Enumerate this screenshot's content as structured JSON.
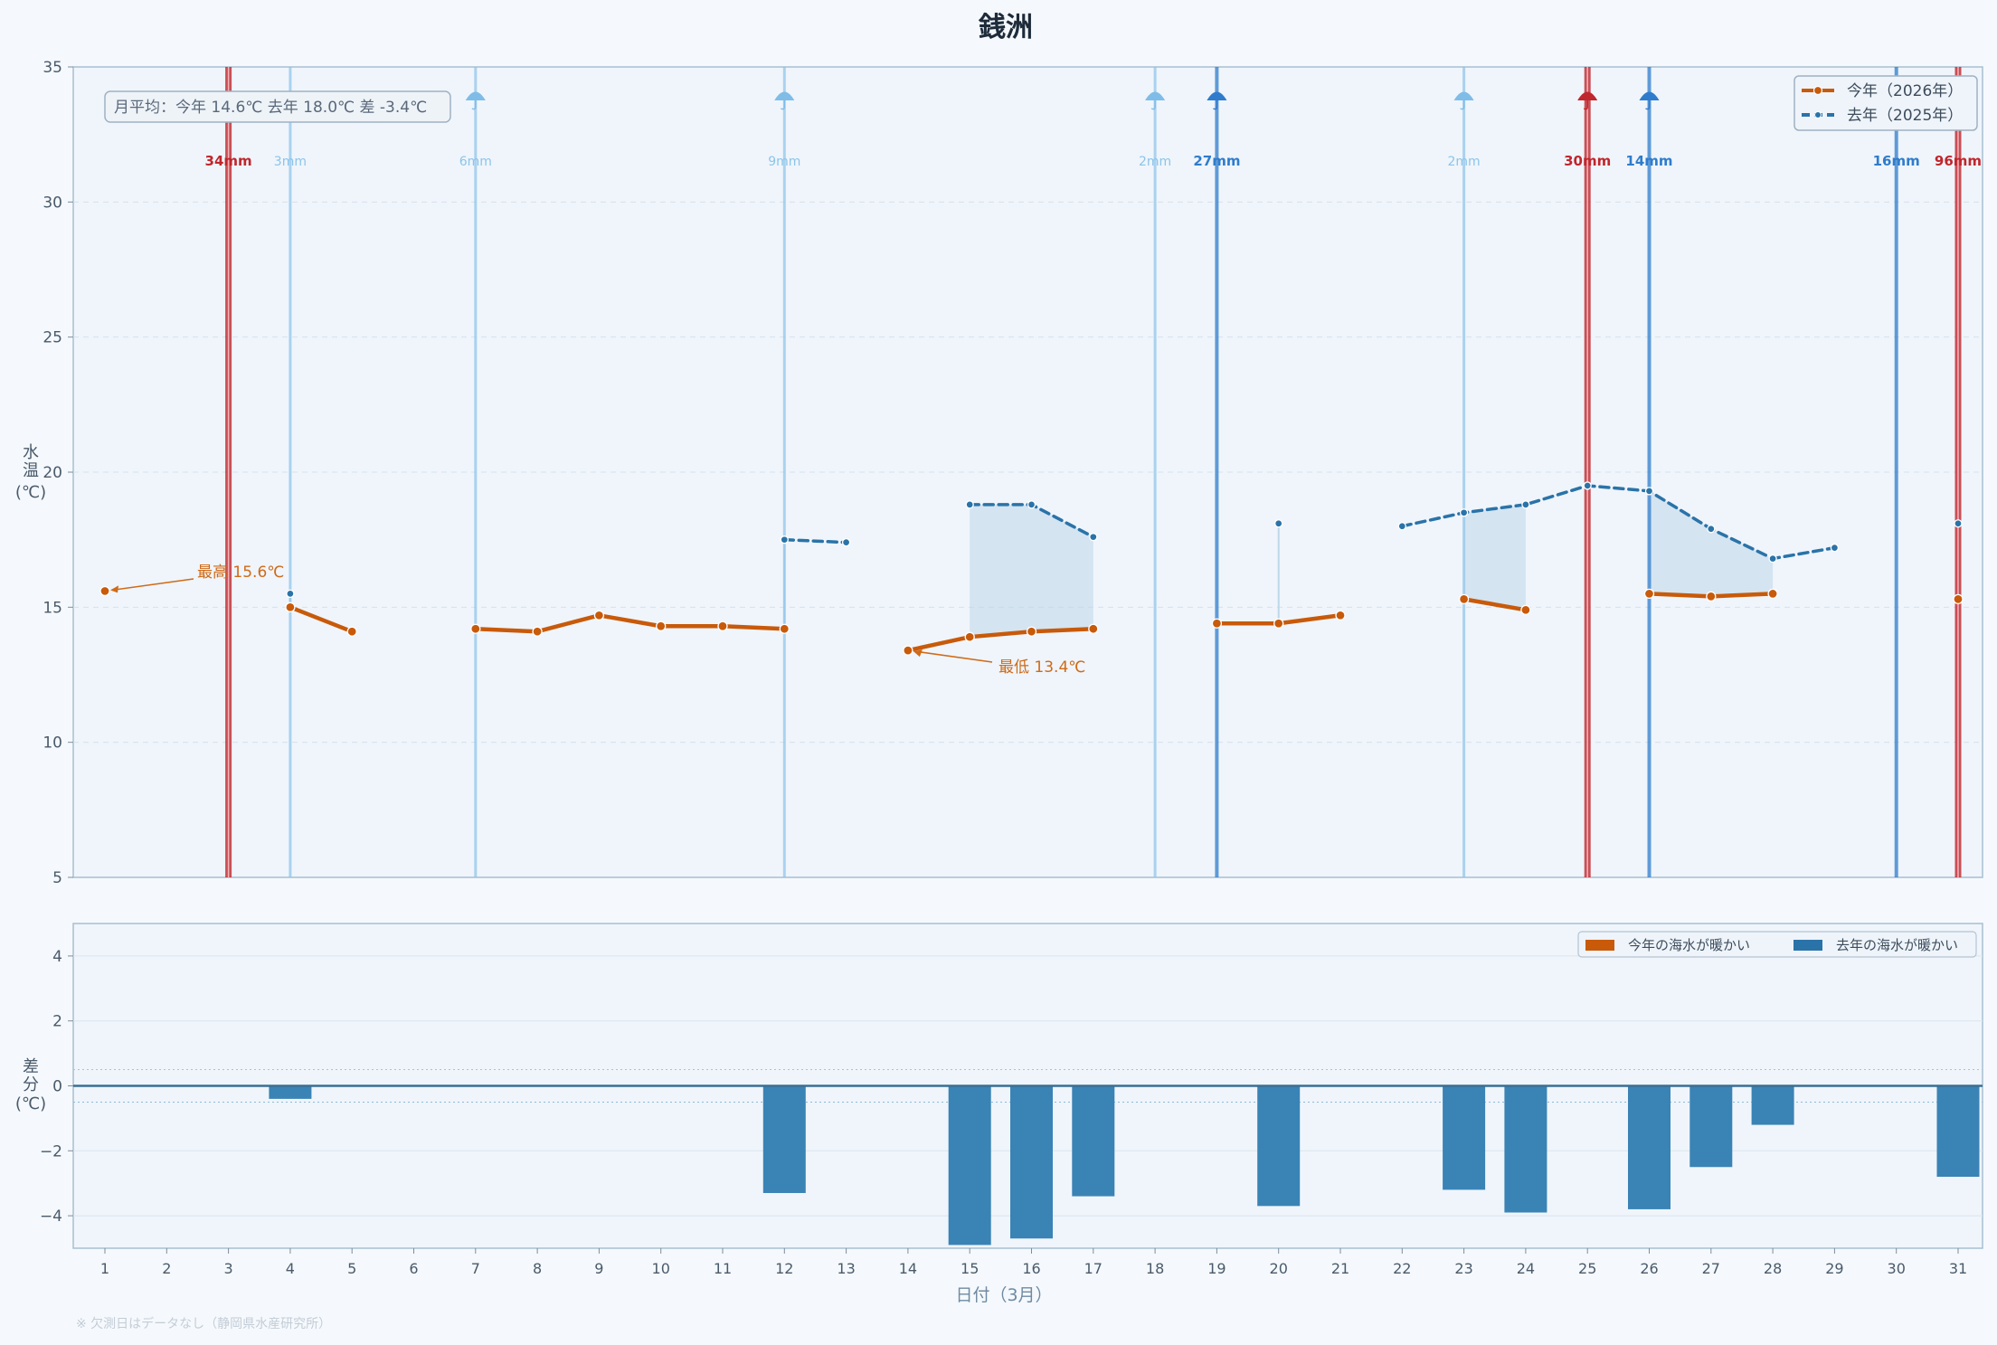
{
  "title": "銭洲",
  "footnote": "※ 欠測日はデータなし（静岡県水産研究所）",
  "colors": {
    "this_year": "#c85a0a",
    "last_year": "#2a73a8",
    "rain_heavy": "#c0262d",
    "rain_mid": "#2f7ccc",
    "rain_light": "#8cc4ea",
    "fill": "#bdd6ea",
    "bar_neg": "#3a83b5",
    "bar_pos": "#c85a0a"
  },
  "chart_data": [
    {
      "type": "line",
      "ylabel": "水温(℃)",
      "ylim": [
        5,
        35
      ],
      "yticks": [
        5,
        10,
        15,
        20,
        25,
        30,
        35
      ],
      "x": [
        1,
        2,
        3,
        4,
        5,
        6,
        7,
        8,
        9,
        10,
        11,
        12,
        13,
        14,
        15,
        16,
        17,
        18,
        19,
        20,
        21,
        22,
        23,
        24,
        25,
        26,
        27,
        28,
        29,
        30,
        31
      ],
      "series": [
        {
          "name": "今年（2026年）",
          "style": "solid",
          "values": [
            15.6,
            null,
            null,
            15.0,
            14.1,
            null,
            14.2,
            14.1,
            14.7,
            14.3,
            14.3,
            14.2,
            null,
            13.4,
            13.9,
            14.1,
            14.2,
            null,
            14.4,
            14.4,
            14.7,
            null,
            15.3,
            14.9,
            null,
            15.5,
            15.4,
            15.5,
            null,
            null,
            15.3
          ]
        },
        {
          "name": "去年（2025年）",
          "style": "dashed",
          "values": [
            null,
            null,
            null,
            15.5,
            null,
            null,
            null,
            null,
            null,
            null,
            null,
            17.5,
            17.4,
            null,
            18.8,
            18.8,
            17.6,
            null,
            null,
            18.1,
            null,
            18.0,
            18.5,
            18.8,
            19.5,
            19.3,
            17.9,
            16.8,
            17.2,
            null,
            18.1
          ]
        }
      ],
      "rain": [
        {
          "day": 3,
          "label": "34mm",
          "level": "heavy"
        },
        {
          "day": 4,
          "label": "3mm",
          "level": "light"
        },
        {
          "day": 7,
          "label": "6mm",
          "level": "light"
        },
        {
          "day": 12,
          "label": "9mm",
          "level": "light"
        },
        {
          "day": 18,
          "label": "2mm",
          "level": "light"
        },
        {
          "day": 19,
          "label": "27mm",
          "level": "mid"
        },
        {
          "day": 23,
          "label": "2mm",
          "level": "light"
        },
        {
          "day": 25,
          "label": "30mm",
          "level": "heavy"
        },
        {
          "day": 26,
          "label": "14mm",
          "level": "mid"
        },
        {
          "day": 30,
          "label": "16mm",
          "level": "mid"
        },
        {
          "day": 31,
          "label": "96mm",
          "level": "heavy"
        }
      ],
      "annotations": [
        {
          "day": 1,
          "value": 15.6,
          "text": "最高 15.6℃"
        },
        {
          "day": 14,
          "value": 13.4,
          "text": "最低 13.4℃"
        }
      ],
      "summary": "月平均：今年 14.6℃  去年 18.0℃  差 -3.4℃",
      "legend": [
        "今年（2026年）",
        "去年（2025年）"
      ]
    },
    {
      "type": "bar",
      "ylabel": "差分(℃)",
      "xlabel": "日付（3月）",
      "ylim": [
        -5,
        5
      ],
      "yticks": [
        4,
        2,
        0,
        -2,
        -4
      ],
      "ytick_labels": [
        "4",
        "2",
        "0",
        "−2",
        "−4"
      ],
      "categories": [
        1,
        2,
        3,
        4,
        5,
        6,
        7,
        8,
        9,
        10,
        11,
        12,
        13,
        14,
        15,
        16,
        17,
        18,
        19,
        20,
        21,
        22,
        23,
        24,
        25,
        26,
        27,
        28,
        29,
        30,
        31
      ],
      "values": [
        null,
        null,
        null,
        -0.4,
        null,
        null,
        null,
        null,
        null,
        null,
        null,
        -3.3,
        null,
        null,
        -4.9,
        -4.7,
        -3.4,
        null,
        null,
        -3.7,
        null,
        null,
        -3.2,
        -3.9,
        null,
        -3.8,
        -2.5,
        -1.2,
        null,
        null,
        -2.8
      ],
      "legend": [
        "今年の海水が暖かい",
        "去年の海水が暖かい"
      ]
    }
  ]
}
